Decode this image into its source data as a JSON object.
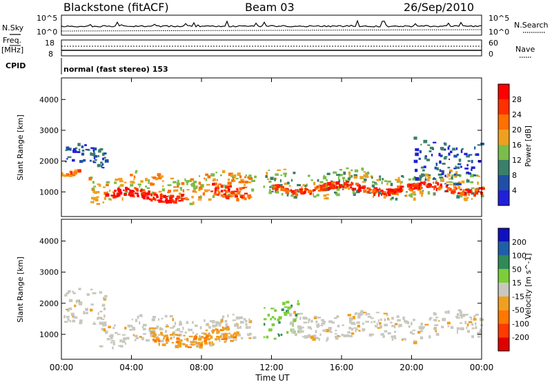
{
  "header": {
    "title": "Blackstone (fitACF)",
    "beam": "Beam 03",
    "date": "26/Sep/2010"
  },
  "top_panels": {
    "nsky_label": "N.Sky",
    "nsearch_label": "N.Search",
    "nsky_ticks": [
      "10^5",
      "10^0"
    ],
    "freq_label": "Freq.",
    "freq_unit": "[MHz]",
    "freq_ticks": [
      "18",
      "8"
    ],
    "nave_label": "Nave",
    "nave_ticks": [
      "60",
      "0"
    ],
    "cpid_label": "CPID",
    "cpid_text": "normal (fast stereo) 153"
  },
  "chart_data": [
    {
      "type": "heatmap",
      "name": "power",
      "ylabel": "Slant Range [km]",
      "xlabel": "",
      "yticks": [
        "1000",
        "2000",
        "3000",
        "4000"
      ],
      "ylim": [
        200,
        4700
      ],
      "colorbar": {
        "label": "Power [dB]",
        "ticks": [
          "4",
          "8",
          "12",
          "16",
          "20",
          "24",
          "28"
        ],
        "colors": [
          "#2020d8",
          "#1f4fa8",
          "#3a7f6a",
          "#7bbd4a",
          "#f0a020",
          "#ff7000",
          "#ff3000",
          "#ff0000"
        ]
      },
      "bands": [
        {
          "t": [
            0.0,
            1.0
          ],
          "r": [
            1450,
            1650
          ],
          "level": 5
        },
        {
          "t": [
            0.2,
            2.5
          ],
          "r": [
            1900,
            2500
          ],
          "level": 1
        },
        {
          "t": [
            1.5,
            11.0
          ],
          "r": [
            750,
            1600
          ],
          "level": 4
        },
        {
          "t": [
            2.5,
            7.0
          ],
          "r": [
            780,
            1050
          ],
          "level": 7
        },
        {
          "t": [
            8.5,
            10.5
          ],
          "r": [
            900,
            1300
          ],
          "level": 6
        },
        {
          "t": [
            11.5,
            24.0
          ],
          "r": [
            850,
            1700
          ],
          "level": 3
        },
        {
          "t": [
            12.0,
            24.0
          ],
          "r": [
            1050,
            1250
          ],
          "level": 6
        },
        {
          "t": [
            20.0,
            24.0
          ],
          "r": [
            1300,
            2700
          ],
          "level": 1
        }
      ]
    },
    {
      "type": "heatmap",
      "name": "velocity",
      "ylabel": "Slant Range [km]",
      "xlabel": "Time UT",
      "xticks": [
        "00:00",
        "04:00",
        "08:00",
        "12:00",
        "16:00",
        "20:00",
        "00:00"
      ],
      "yticks": [
        "1000",
        "2000",
        "3000",
        "4000"
      ],
      "ylim": [
        200,
        4700
      ],
      "colorbar": {
        "label": "Velocity [m s^-1]",
        "ticks": [
          "200",
          "100",
          "50",
          "15",
          "-15",
          "-50",
          "-100",
          "-200"
        ],
        "colors": [
          "#1010c0",
          "#1f5fa8",
          "#2e8b57",
          "#7dcd3a",
          "#c8c8c0",
          "#f0a020",
          "#ff7800",
          "#ff3a00",
          "#e00000"
        ]
      },
      "bands": [
        {
          "t": [
            0.0,
            2.5
          ],
          "r": [
            1200,
            2400
          ],
          "level": "ground"
        },
        {
          "t": [
            2.0,
            11.0
          ],
          "r": [
            700,
            1600
          ],
          "level": "ground"
        },
        {
          "t": [
            5.0,
            10.0
          ],
          "r": [
            700,
            1150
          ],
          "level": "negative"
        },
        {
          "t": [
            11.5,
            13.5
          ],
          "r": [
            900,
            2000
          ],
          "level": "positive"
        },
        {
          "t": [
            13.0,
            24.0
          ],
          "r": [
            900,
            1700
          ],
          "level": "ground"
        }
      ]
    }
  ]
}
